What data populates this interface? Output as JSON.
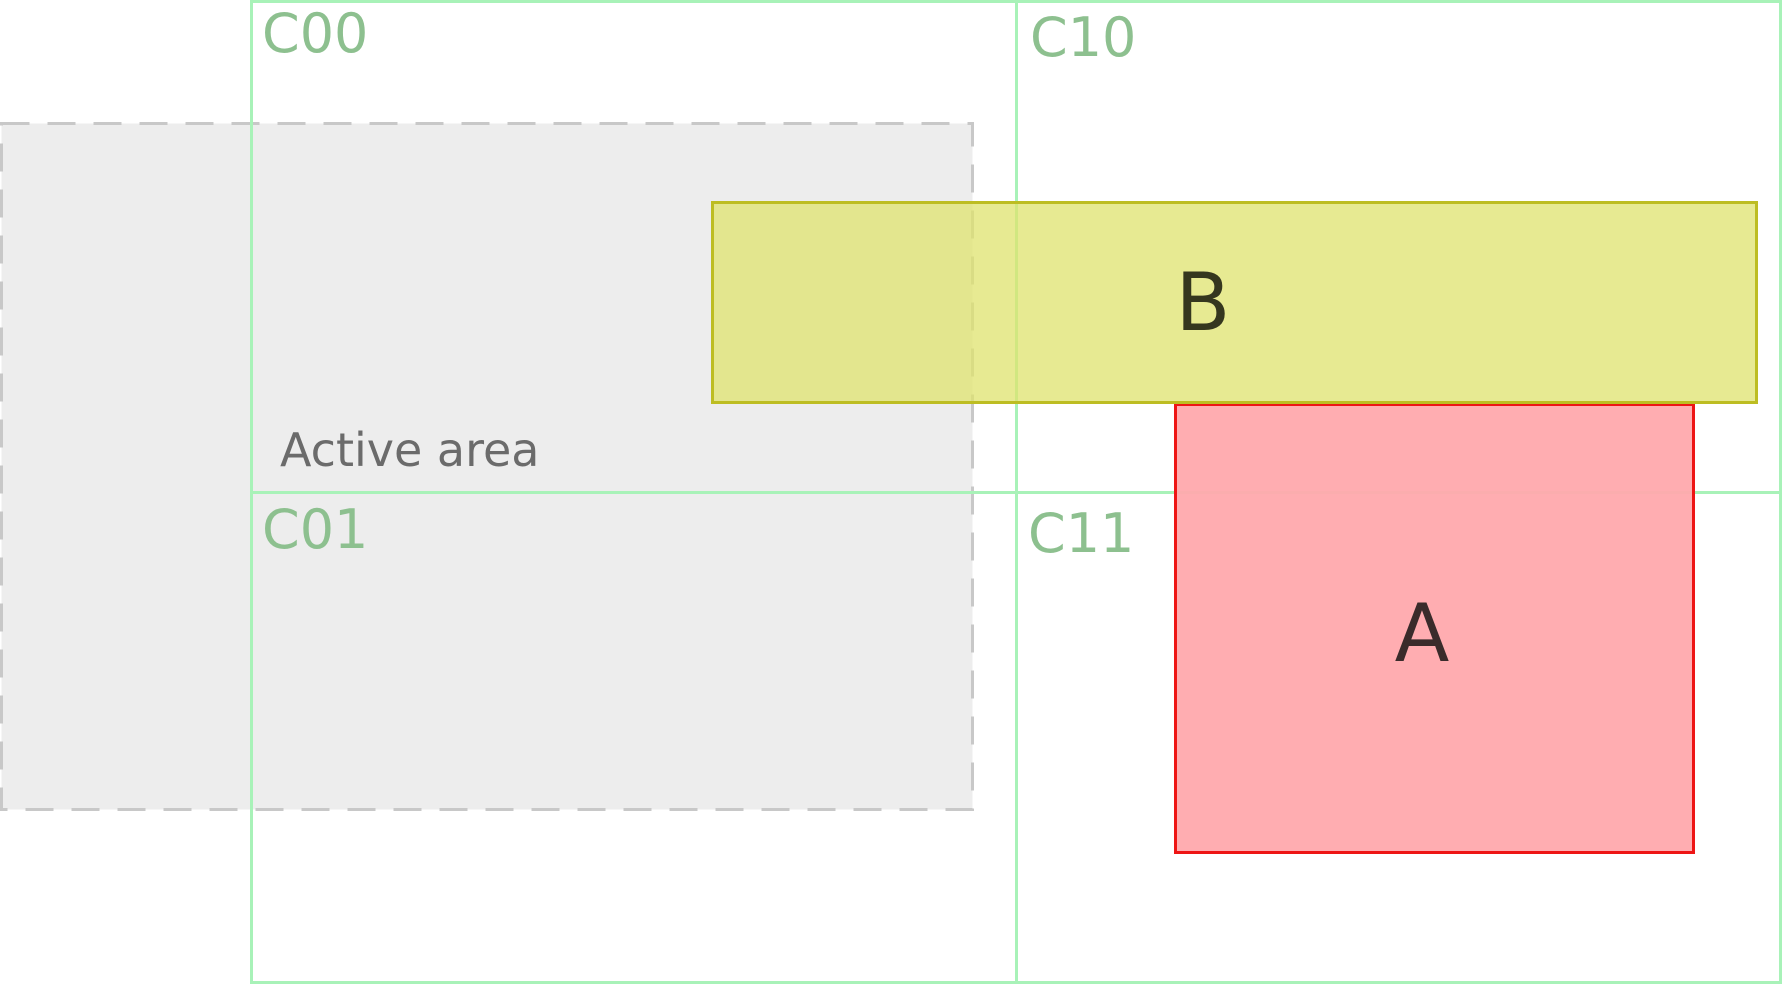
{
  "colors": {
    "grid_line": "#a8f2b8",
    "cell_label": "#8dc08f",
    "active_area_fill": "#ededed",
    "active_area_border": "#c8c8c8",
    "active_area_label": "#6b6b6b",
    "box_a_fill": "#ffa9ad",
    "box_a_border": "#ee1515",
    "box_a_label": "#3a2b2b",
    "box_b_fill": "#dfe36e",
    "box_b_border": "#bdbd22",
    "box_b_label": "#35371f"
  },
  "grid": {
    "cells": [
      {
        "id": "C00",
        "label": "C00"
      },
      {
        "id": "C10",
        "label": "C10"
      },
      {
        "id": "C01",
        "label": "C01"
      },
      {
        "id": "C11",
        "label": "C11"
      }
    ]
  },
  "active_area": {
    "label": "Active area"
  },
  "boxes": [
    {
      "id": "A",
      "label": "A"
    },
    {
      "id": "B",
      "label": "B"
    }
  ]
}
